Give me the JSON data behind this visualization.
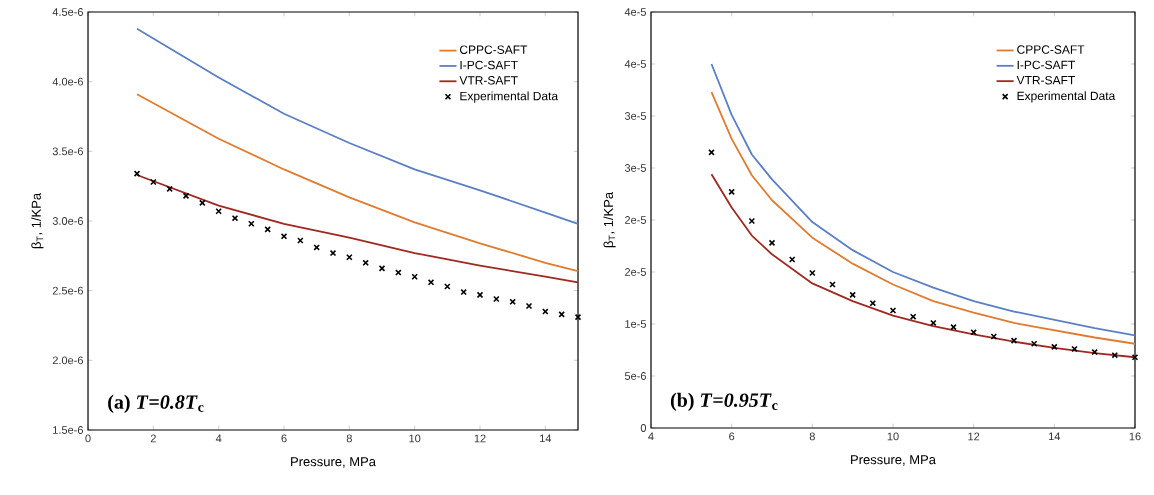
{
  "chart_data": [
    {
      "type": "line",
      "xlabel": "Pressure, MPa",
      "ylabel": "β$_{T}$, 1/KPa",
      "annotations": [
        "(a) *T*=*0.8T*$_{c}$"
      ],
      "legend": "top right",
      "marker": "none",
      "line_style": "solid",
      "xlim": [
        0,
        15
      ],
      "ylim": [
        1.5e-06,
        4.5e-06
      ],
      "xticks": [
        0,
        2,
        4,
        6,
        8,
        10,
        12,
        14
      ],
      "yticks": [
        {
          "value": 1.5e-06,
          "label": "1.5e-6"
        },
        {
          "value": 2e-06,
          "label": "2.0e-6"
        },
        {
          "value": 2.5e-06,
          "label": "2.5e-6"
        },
        {
          "value": 3e-06,
          "label": "3.0e-6"
        },
        {
          "value": 3.5e-06,
          "label": "3.5e-6"
        },
        {
          "value": 4e-06,
          "label": "4.0e-6"
        },
        {
          "value": 4.5e-06,
          "label": "4.5e-6"
        }
      ],
      "series": [
        {
          "name": "CPPC-SAFT",
          "color": "#e07b30",
          "x": [
            1.5,
            4,
            6,
            8,
            10,
            12,
            14,
            15
          ],
          "values": [
            3.91e-06,
            3.59e-06,
            3.37e-06,
            3.17e-06,
            2.99e-06,
            2.84e-06,
            2.7e-06,
            2.64e-06
          ]
        },
        {
          "name": "I-PC-SAFT",
          "color": "#5b7fc4",
          "x": [
            1.5,
            4,
            6,
            8,
            10,
            12,
            14,
            15
          ],
          "values": [
            4.38e-06,
            4.03e-06,
            3.77e-06,
            3.56e-06,
            3.37e-06,
            3.22e-06,
            3.06e-06,
            2.98e-06
          ]
        },
        {
          "name": "VTR-SAFT",
          "color": "#a02820",
          "x": [
            1.5,
            4,
            6,
            8,
            10,
            12,
            14,
            15
          ],
          "values": [
            3.33e-06,
            3.11e-06,
            2.98e-06,
            2.88e-06,
            2.77e-06,
            2.68e-06,
            2.6e-06,
            2.56e-06
          ]
        },
        {
          "name": "Experimental Data",
          "type": "scatter",
          "marker": "cross",
          "color": "#000000",
          "x": [
            1.5,
            2,
            2.5,
            3,
            3.5,
            4,
            4.5,
            5,
            5.5,
            6,
            6.5,
            7,
            7.5,
            8,
            8.5,
            9,
            9.5,
            10,
            10.5,
            11,
            11.5,
            12,
            12.5,
            13,
            13.5,
            14,
            14.5,
            15
          ],
          "values": [
            3.34e-06,
            3.28e-06,
            3.23e-06,
            3.18e-06,
            3.13e-06,
            3.07e-06,
            3.02e-06,
            2.98e-06,
            2.94e-06,
            2.89e-06,
            2.86e-06,
            2.81e-06,
            2.77e-06,
            2.74e-06,
            2.7e-06,
            2.66e-06,
            2.63e-06,
            2.6e-06,
            2.56e-06,
            2.53e-06,
            2.49e-06,
            2.47e-06,
            2.44e-06,
            2.42e-06,
            2.39e-06,
            2.35e-06,
            2.33e-06,
            2.31e-06
          ]
        }
      ]
    },
    {
      "type": "line",
      "xlabel": "Pressure, MPa",
      "ylabel": "β$_{T}$, 1/KPa",
      "annotations": [
        "(b) *T*=*0.95T*$_{c}$"
      ],
      "legend": "top right",
      "marker": "none",
      "line_style": "solid",
      "xlim": [
        4,
        16
      ],
      "ylim": [
        0,
        4e-05
      ],
      "xticks": [
        4,
        6,
        8,
        10,
        12,
        14,
        16
      ],
      "yticks": [
        0,
        {
          "value": 5e-06,
          "label": "5e-6"
        },
        {
          "value": 1e-05,
          "label": "1e-5"
        },
        {
          "value": 1.5e-05,
          "label": "2e-5"
        },
        {
          "value": 2e-05,
          "label": "2e-5"
        },
        {
          "value": 2.5e-05,
          "label": "3e-5"
        },
        {
          "value": 3e-05,
          "label": "3e-5"
        },
        {
          "value": 3.5e-05,
          "label": "4e-5"
        },
        {
          "value": 4e-05,
          "label": "4e-5"
        }
      ],
      "series": [
        {
          "name": "CPPC-SAFT",
          "color": "#e07b30",
          "x": [
            5.5,
            6,
            6.5,
            7,
            8,
            9,
            10,
            11,
            12,
            13,
            14,
            15,
            16
          ],
          "values": [
            3.23e-05,
            2.78e-05,
            2.43e-05,
            2.19e-05,
            1.83e-05,
            1.58e-05,
            1.38e-05,
            1.22e-05,
            1.11e-05,
            1.01e-05,
            9.4e-06,
            8.7e-06,
            8.1e-06
          ]
        },
        {
          "name": "I-PC-SAFT",
          "color": "#5b7fc4",
          "x": [
            5.5,
            6,
            6.5,
            7,
            8,
            9,
            10,
            11,
            12,
            13,
            14,
            15,
            16
          ],
          "values": [
            3.5e-05,
            3.01e-05,
            2.63e-05,
            2.39e-05,
            1.98e-05,
            1.71e-05,
            1.5e-05,
            1.35e-05,
            1.22e-05,
            1.12e-05,
            1.04e-05,
            9.6e-06,
            8.9e-06
          ]
        },
        {
          "name": "VTR-SAFT",
          "color": "#a02820",
          "x": [
            5.5,
            6,
            6.5,
            7,
            8,
            9,
            10,
            11,
            12,
            13,
            14,
            15,
            16
          ],
          "values": [
            2.44e-05,
            2.12e-05,
            1.85e-05,
            1.67e-05,
            1.39e-05,
            1.22e-05,
            1.08e-05,
            9.8e-06,
            9e-06,
            8.3e-06,
            7.7e-06,
            7.2e-06,
            6.8e-06
          ]
        },
        {
          "name": "Experimental Data",
          "type": "scatter",
          "marker": "cross",
          "color": "#000000",
          "x": [
            5.5,
            6,
            6.5,
            7,
            7.5,
            8,
            8.5,
            9,
            9.5,
            10,
            10.5,
            11,
            11.5,
            12,
            12.5,
            13,
            13.5,
            14,
            14.5,
            15,
            15.5,
            16
          ],
          "values": [
            2.65e-05,
            2.27e-05,
            1.99e-05,
            1.78e-05,
            1.62e-05,
            1.49e-05,
            1.38e-05,
            1.28e-05,
            1.2e-05,
            1.13e-05,
            1.07e-05,
            1.01e-05,
            9.7e-06,
            9.2e-06,
            8.8e-06,
            8.4e-06,
            8.1e-06,
            7.8e-06,
            7.6e-06,
            7.3e-06,
            7e-06,
            6.8e-06
          ]
        }
      ]
    }
  ]
}
